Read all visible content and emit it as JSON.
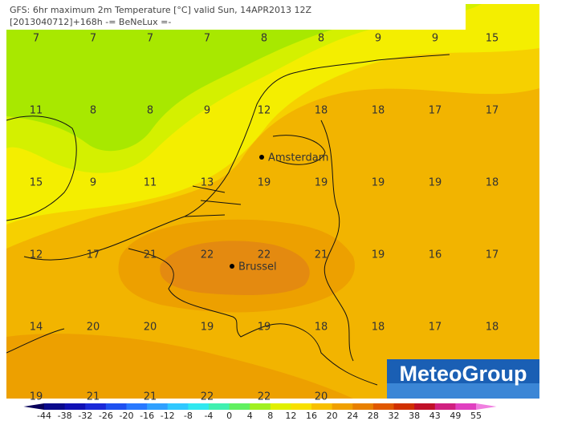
{
  "header": {
    "line1": "GFS: 6hr maximum 2m Temperature [°C] valid Sun, 14APR2013 12Z",
    "line2": "[2013040712]+168h -= BeNeLux =-"
  },
  "grid": {
    "rows": [
      [
        7,
        7,
        7,
        7,
        8,
        8,
        9,
        9,
        15
      ],
      [
        11,
        8,
        8,
        9,
        12,
        18,
        18,
        17,
        17
      ],
      [
        15,
        9,
        11,
        13,
        19,
        19,
        19,
        19,
        18
      ],
      [
        12,
        17,
        21,
        22,
        22,
        21,
        19,
        16,
        17
      ],
      [
        14,
        20,
        20,
        19,
        19,
        18,
        18,
        17,
        18
      ],
      [
        19,
        21,
        21,
        22,
        22,
        20
      ]
    ]
  },
  "cities": [
    {
      "name": "Amsterdam"
    },
    {
      "name": "Brussel"
    }
  ],
  "colorbar": {
    "ticks": [
      -44,
      -38,
      -32,
      -26,
      -20,
      -16,
      -12,
      -8,
      -4,
      0,
      4,
      8,
      12,
      16,
      20,
      24,
      28,
      32,
      38,
      43,
      49,
      55
    ]
  },
  "logo": "MeteoGroup"
}
